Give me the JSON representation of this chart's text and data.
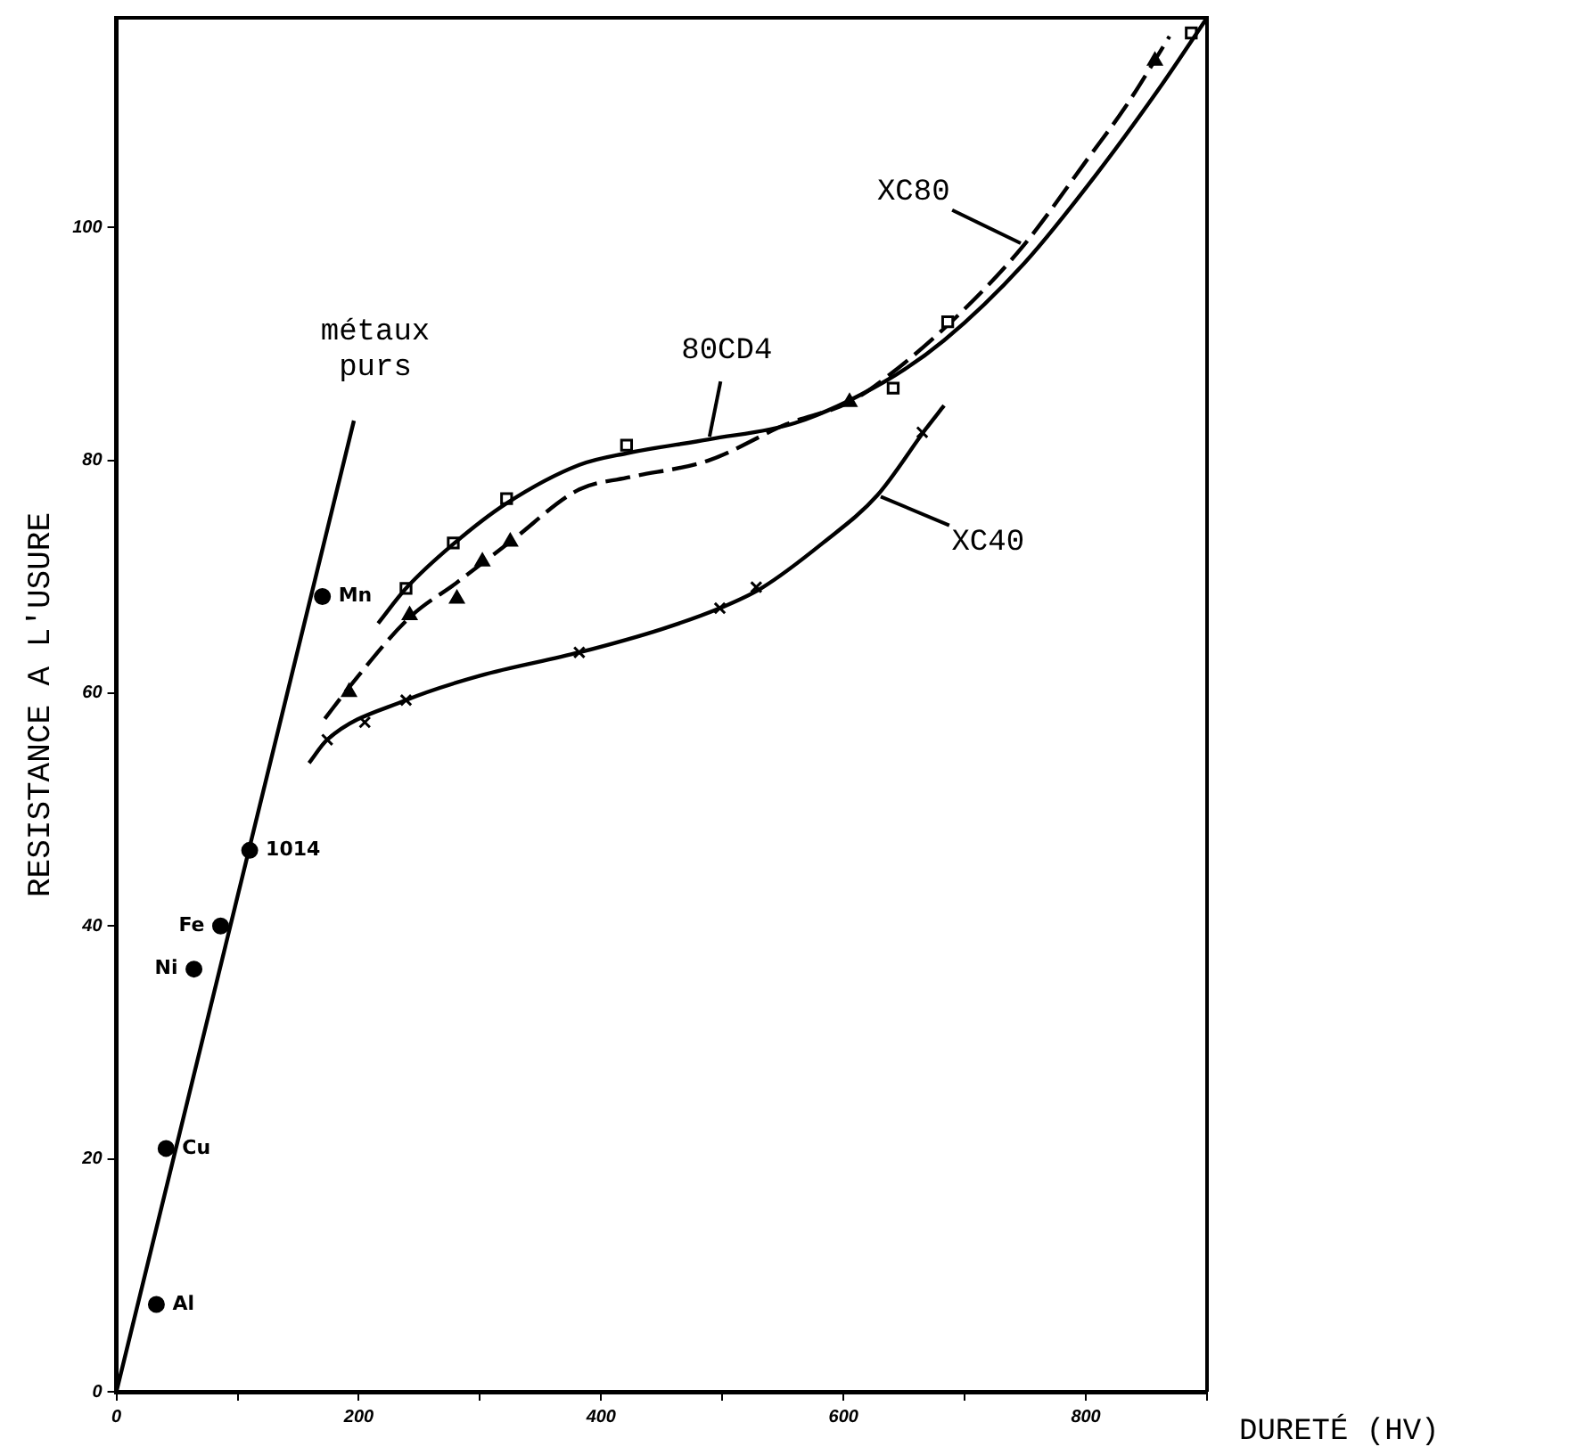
{
  "chart_data": {
    "type": "line",
    "xlabel": "DURETÉ (HV)",
    "ylabel": "RESISTANCE A L'USURE",
    "xlim": [
      0,
      900
    ],
    "ylim": [
      0,
      118
    ],
    "xticks": [
      0,
      {
        "value": 100,
        "label": null
      },
      200,
      {
        "value": 300,
        "label": null
      },
      400,
      {
        "value": 500,
        "label": null
      },
      600,
      {
        "value": 700,
        "label": null
      },
      800,
      {
        "value": 900,
        "label": null
      }
    ],
    "yticks": [
      0,
      20,
      40,
      60,
      80,
      100
    ],
    "grid": false,
    "legend": false,
    "line_style": "solid",
    "series": [
      {
        "name": "métaux purs",
        "color": "#000000",
        "marker": "none",
        "x": [
          0,
          196
        ],
        "values": [
          0,
          83.4
        ]
      },
      {
        "type": "scatter",
        "color": "#000000",
        "marker": "circle",
        "x": [
          33,
          41,
          64,
          86,
          110,
          170
        ],
        "values": [
          7.5,
          20.9,
          36.3,
          40,
          46.5,
          68.3
        ]
      },
      {
        "name": "80CD4",
        "color": "#000000",
        "marker": "none",
        "x": [
          216,
          239,
          278,
          322,
          382,
          421,
          489,
          560,
          633,
          683,
          749,
          809,
          863,
          900
        ],
        "values": [
          66,
          69,
          72.8,
          76.3,
          79.6,
          80.6,
          81.8,
          83.2,
          86.7,
          90.3,
          96.9,
          104.6,
          112.3,
          118
        ]
      },
      {
        "type": "scatter",
        "color": "#000000",
        "marker": "square",
        "x": [
          239,
          278,
          322,
          421,
          641,
          686,
          887
        ],
        "values": [
          69,
          72.9,
          76.7,
          81.3,
          86.2,
          91.9,
          116.7
        ]
      },
      {
        "name": "XC80",
        "color": "#000000",
        "marker": "none",
        "line_style": "dashed",
        "x": [
          172,
          192,
          242,
          281,
          325,
          382,
          421,
          489,
          553,
          605,
          640,
          698,
          749,
          803,
          833,
          869
        ],
        "values": [
          57.8,
          60.5,
          66.5,
          69.5,
          73,
          77.5,
          78.5,
          80,
          83.1,
          85,
          87.5,
          92.8,
          98.5,
          106.1,
          110.4,
          116.4
        ]
      },
      {
        "type": "scatter",
        "color": "#000000",
        "marker": "triangle",
        "x": [
          192,
          242,
          281,
          302,
          325,
          605,
          857
        ],
        "values": [
          60.1,
          66.7,
          68.1,
          71.3,
          73,
          85,
          114.3
        ]
      },
      {
        "name": "XC40",
        "color": "#000000",
        "marker": "none",
        "x": [
          159,
          174,
          239,
          300,
          382,
          450,
          498,
          532,
          583,
          628,
          668,
          683
        ],
        "values": [
          54,
          56,
          59.4,
          61.5,
          63.5,
          65.5,
          67.3,
          69,
          72.9,
          77,
          82.7,
          84.7
        ]
      },
      {
        "type": "scatter",
        "color": "#000000",
        "marker": "cross",
        "x": [
          174,
          205,
          239,
          382,
          498,
          528,
          665
        ],
        "values": [
          56,
          57.5,
          59.4,
          63.5,
          67.3,
          69.1,
          82.4
        ]
      }
    ],
    "annotations": [
      {
        "text": "Al",
        "x": 33,
        "y": 7.5
      },
      {
        "text": "Cu",
        "x": 41,
        "y": 20.9
      },
      {
        "text": "Ni",
        "x": 64,
        "y": 36.3
      },
      {
        "text": "Fe",
        "x": 86,
        "y": 40
      },
      {
        "text": "1014",
        "x": 110,
        "y": 46.5
      },
      {
        "text": "Mn",
        "x": 170,
        "y": 68.3
      }
    ]
  }
}
